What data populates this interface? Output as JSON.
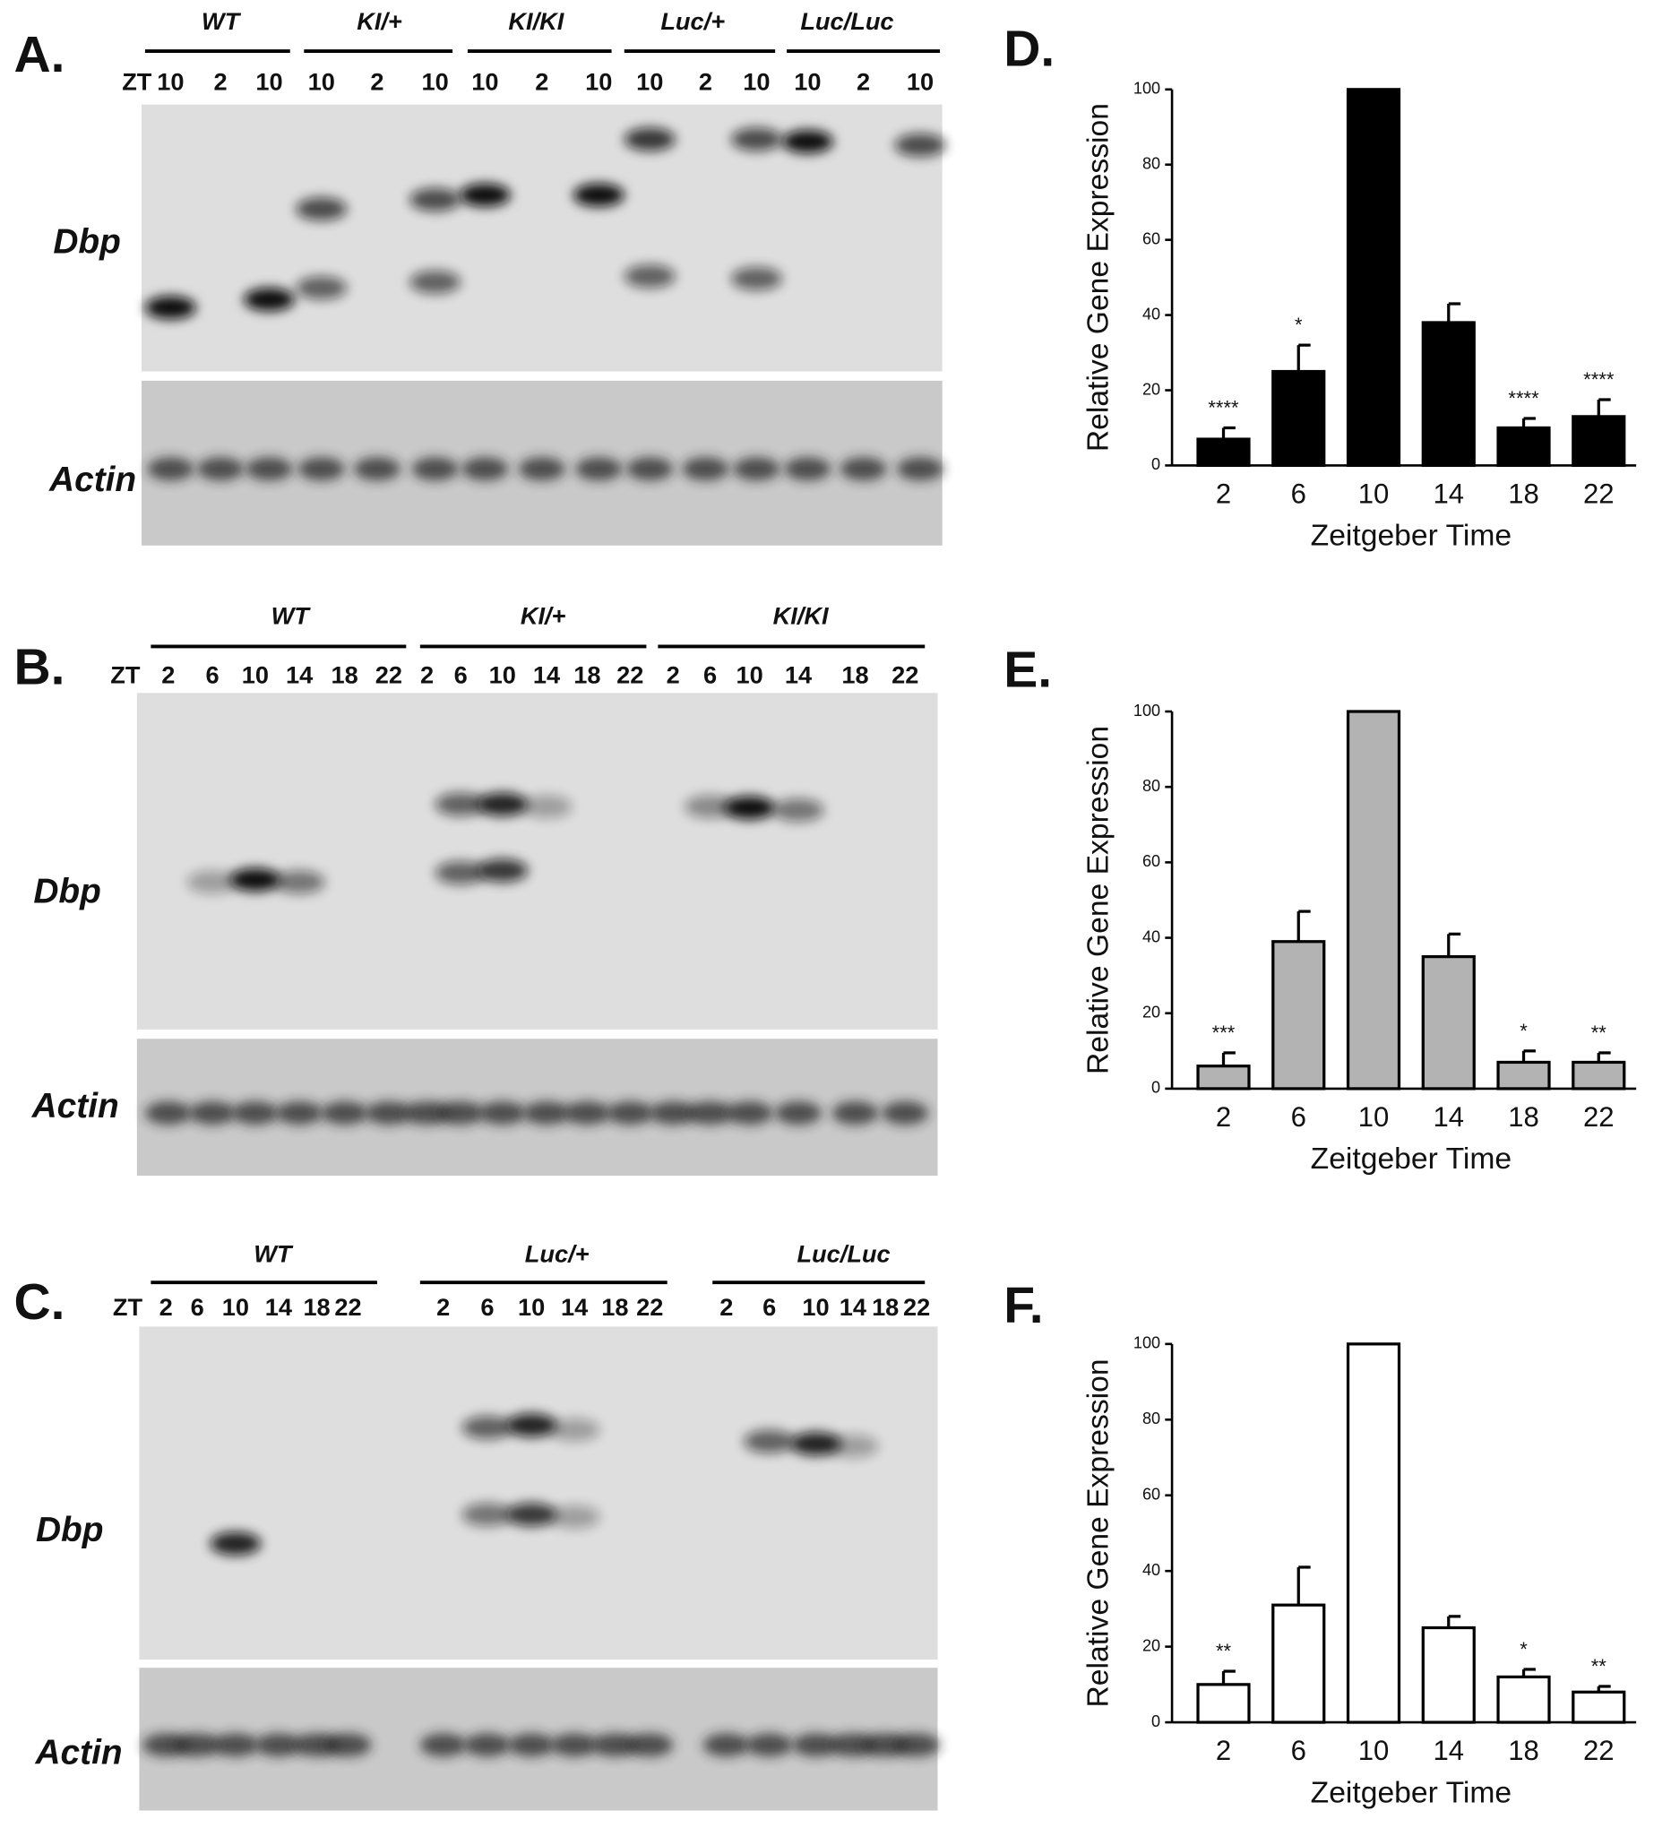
{
  "panels": [
    {
      "letter": "A.",
      "genotypes": [
        "WT",
        "KI/+",
        "KI/KI",
        "Luc/+",
        "Luc/Luc"
      ],
      "zt_label": "ZT",
      "lanes": [
        "10",
        "2",
        "10",
        "10",
        "2",
        "10",
        "10",
        "2",
        "10",
        "10",
        "2",
        "10",
        "10",
        "2",
        "10"
      ],
      "gene": "Dbp",
      "control": "Actin"
    },
    {
      "letter": "B.",
      "genotypes": [
        "WT",
        "KI/+",
        "KI/KI"
      ],
      "zt_label": "ZT",
      "lanes": [
        "2",
        "6",
        "10",
        "14",
        "18",
        "22",
        "2",
        "6",
        "10",
        "14",
        "18",
        "22",
        "2",
        "6",
        "10",
        "14",
        "18",
        "22"
      ],
      "gene": "Dbp",
      "control": "Actin"
    },
    {
      "letter": "C.",
      "genotypes": [
        "WT",
        "Luc/+",
        "Luc/Luc"
      ],
      "zt_label": "ZT",
      "lanes": [
        "2",
        "6",
        "10",
        "14",
        "18",
        "22",
        "2",
        "6",
        "10",
        "14",
        "18",
        "22",
        "2",
        "6",
        "10",
        "14",
        "18",
        "22"
      ],
      "gene": "Dbp",
      "control": "Actin"
    }
  ],
  "chart_data": [
    {
      "type": "bar",
      "panel": "D.",
      "ylabel": "Relative Gene Expression",
      "xlabel": "Zeitgeber Time",
      "categories": [
        "2",
        "6",
        "10",
        "14",
        "18",
        "22"
      ],
      "values": [
        7,
        25,
        100,
        38,
        10,
        13
      ],
      "errors": [
        3,
        7,
        null,
        5,
        2.5,
        4.5
      ],
      "annotations": [
        "****",
        "*",
        null,
        null,
        "****",
        "****"
      ],
      "color": "#000000",
      "ylim": [
        0,
        100
      ],
      "yticks": [
        0,
        20,
        40,
        60,
        80,
        100
      ]
    },
    {
      "type": "bar",
      "panel": "E.",
      "ylabel": "Relative Gene Expression",
      "xlabel": "Zeitgeber Time",
      "categories": [
        "2",
        "6",
        "10",
        "14",
        "18",
        "22"
      ],
      "values": [
        6,
        39,
        100,
        35,
        7,
        7
      ],
      "errors": [
        3.5,
        8,
        null,
        6,
        3,
        2.5
      ],
      "annotations": [
        "***",
        null,
        null,
        null,
        "*",
        "**"
      ],
      "color": "#b3b3b3",
      "ylim": [
        0,
        100
      ],
      "yticks": [
        0,
        20,
        40,
        60,
        80,
        100
      ]
    },
    {
      "type": "bar",
      "panel": "F.",
      "ylabel": "Relative Gene Expression",
      "xlabel": "Zeitgeber Time",
      "categories": [
        "2",
        "6",
        "10",
        "14",
        "18",
        "22"
      ],
      "values": [
        10,
        31,
        100,
        25,
        12,
        8
      ],
      "errors": [
        3.5,
        10,
        null,
        3,
        2,
        1.5
      ],
      "annotations": [
        "**",
        null,
        null,
        null,
        "*",
        "**"
      ],
      "color": "#ffffff",
      "ylim": [
        0,
        100
      ],
      "yticks": [
        0,
        20,
        40,
        60,
        80,
        100
      ]
    }
  ]
}
